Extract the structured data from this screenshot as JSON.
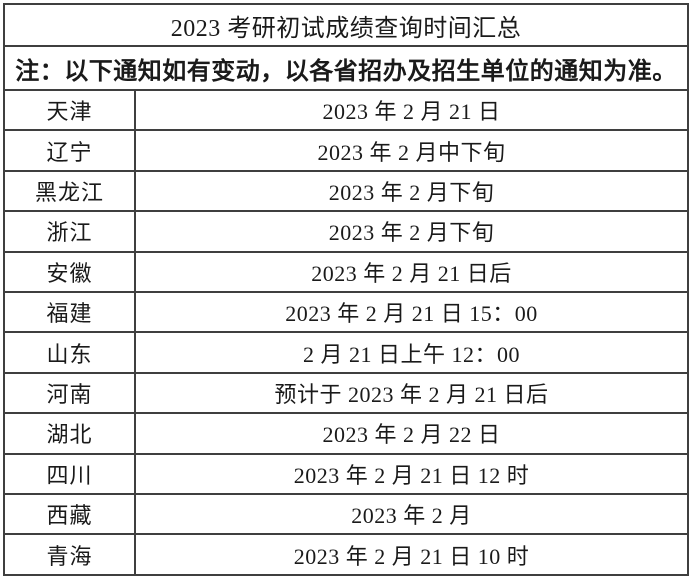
{
  "table": {
    "title": "2023 考研初试成绩查询时间汇总",
    "note": "注：以下通知如有变动，以各省招办及招生单位的通知为准。",
    "rows": [
      {
        "province": "天津",
        "time": "2023 年 2 月 21 日"
      },
      {
        "province": "辽宁",
        "time": "2023 年 2 月中下旬"
      },
      {
        "province": "黑龙江",
        "time": "2023 年 2 月下旬"
      },
      {
        "province": "浙江",
        "time": "2023 年 2 月下旬"
      },
      {
        "province": "安徽",
        "time": "2023 年 2 月 21 日后"
      },
      {
        "province": "福建",
        "time": "2023 年 2 月 21 日 15：00"
      },
      {
        "province": "山东",
        "time": "2 月 21 日上午 12：00"
      },
      {
        "province": "河南",
        "time": "预计于 2023 年 2 月 21 日后"
      },
      {
        "province": "湖北",
        "time": "2023 年 2 月 22 日"
      },
      {
        "province": "四川",
        "time": "2023 年 2 月 21 日 12 时"
      },
      {
        "province": "西藏",
        "time": "2023 年 2 月"
      },
      {
        "province": "青海",
        "time": "2023 年 2 月 21 日 10 时"
      }
    ]
  },
  "colors": {
    "note_text": "#fe0000",
    "body_text": "#1a1a1a",
    "grid_line": "#3f3f3f",
    "outer_border": "#000000",
    "background": "#ffffff"
  }
}
